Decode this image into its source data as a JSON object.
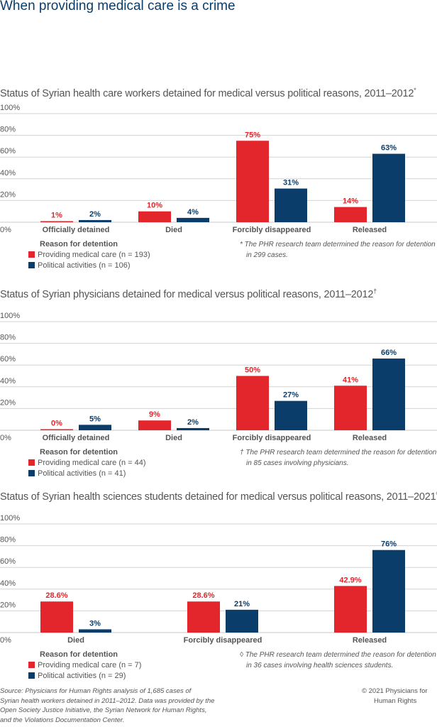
{
  "title": "When providing medical care is a crime",
  "colors": {
    "medical": "#e3262b",
    "political": "#0b3d6b",
    "grid": "#d3d3d3"
  },
  "legend_heading": "Reason for detention",
  "chart_data": [
    {
      "type": "bar",
      "title": "Status of Syrian health care workers detained for medical versus political reasons, 2011–2012",
      "title_mark": "*",
      "categories": [
        "Officially detained",
        "Died",
        "Forcibly disappeared",
        "Released"
      ],
      "yticks": [
        "0%",
        "20%",
        "40%",
        "60%",
        "80%",
        "100%"
      ],
      "ylim": [
        0,
        100
      ],
      "grid": true,
      "series": [
        {
          "name": "Providing medical care (n = 193)",
          "values": [
            1,
            10,
            75,
            14
          ],
          "labels": [
            "1%",
            "10%",
            "75%",
            "14%"
          ]
        },
        {
          "name": "Political activities (n = 106)",
          "values": [
            2,
            4,
            31,
            63
          ],
          "labels": [
            "2%",
            "4%",
            "31%",
            "63%"
          ]
        }
      ],
      "note": [
        "*  The PHR research team determined the reason for detention",
        "in 299 cases."
      ]
    },
    {
      "type": "bar",
      "title": "Status of Syrian physicians detained for medical versus political reasons, 2011–2012",
      "title_mark": "†",
      "categories": [
        "Officially detained",
        "Died",
        "Forcibly disappeared",
        "Released"
      ],
      "yticks": [
        "0%",
        "20%",
        "40%",
        "60%",
        "80%",
        "100%"
      ],
      "ylim": [
        0,
        100
      ],
      "grid": true,
      "series": [
        {
          "name": "Providing medical care (n = 44)",
          "values": [
            0,
            9,
            50,
            41
          ],
          "labels": [
            "0%",
            "9%",
            "50%",
            "41%"
          ]
        },
        {
          "name": "Political activities (n = 41)",
          "values": [
            5,
            2,
            27,
            66
          ],
          "labels": [
            "5%",
            "2%",
            "27%",
            "66%"
          ]
        }
      ],
      "note": [
        "†  The PHR research team determined the reason for detention",
        "in 85 cases involving physicians."
      ]
    },
    {
      "type": "bar",
      "title": "Status of Syrian health sciences students detained for medical versus political reasons, 2011–2021",
      "title_mark": "◊",
      "categories": [
        "Died",
        "Forcibly disappeared",
        "Released"
      ],
      "yticks": [
        "0%",
        "20%",
        "40%",
        "60%",
        "80%",
        "100%"
      ],
      "ylim": [
        0,
        100
      ],
      "grid": true,
      "series": [
        {
          "name": "Providing medical care (n = 7)",
          "values": [
            28.6,
            28.6,
            42.9
          ],
          "labels": [
            "28.6%",
            "28.6%",
            "42.9%"
          ]
        },
        {
          "name": "Political activities (n = 29)",
          "values": [
            3,
            21,
            76
          ],
          "labels": [
            "3%",
            "21%",
            "76%"
          ]
        }
      ],
      "note": [
        "◊  The PHR research team determined the reason for detention",
        "in 36 cases involving health sciences students."
      ]
    }
  ],
  "source": [
    "Source: Physicians for Human Rights analysis of 1,685 cases of",
    "Syrian health workers detained in 2011–2012. Data was provided by the",
    "Open Society Justice Initiative, the Syrian Network for Human Rights,",
    "and the Violations Documentation Center."
  ],
  "copyright": [
    "©  2021 Physicians for",
    "Human Rights"
  ]
}
